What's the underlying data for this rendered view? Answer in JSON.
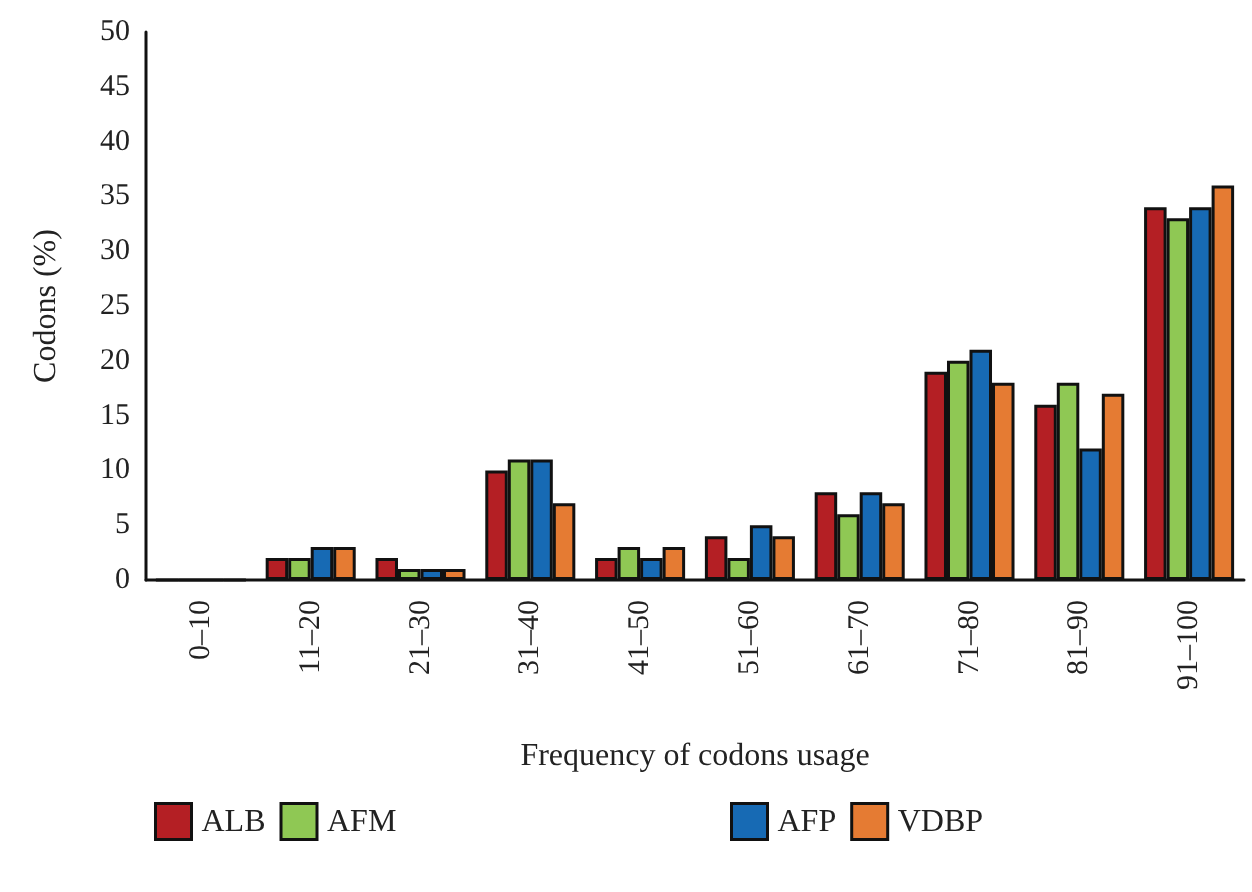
{
  "chart_data": {
    "type": "bar",
    "xlabel": "Frequency of codons usage",
    "ylabel": "Codons (%)",
    "categories": [
      "0–10",
      "11–20",
      "21–30",
      "31–40",
      "41–50",
      "51–60",
      "61–70",
      "71–80",
      "81–90",
      "91–100"
    ],
    "series": [
      {
        "name": "ALB",
        "color": "#b41f24",
        "values": [
          0,
          2,
          2,
          10,
          2,
          4,
          8,
          19,
          16,
          34
        ]
      },
      {
        "name": "AFM",
        "color": "#8fc854",
        "values": [
          0,
          2,
          1,
          11,
          3,
          2,
          6,
          20,
          18,
          33
        ]
      },
      {
        "name": "AFP",
        "color": "#176ab4",
        "values": [
          0,
          3,
          1,
          11,
          2,
          5,
          8,
          21,
          12,
          34
        ]
      },
      {
        "name": "VDBP",
        "color": "#e57b33",
        "values": [
          0,
          3,
          1,
          7,
          3,
          4,
          7,
          18,
          17,
          36
        ]
      }
    ],
    "ylim": [
      0,
      50
    ],
    "yticks": [
      0,
      5,
      10,
      15,
      20,
      25,
      30,
      35,
      40,
      45,
      50
    ],
    "grid": false,
    "legend": "bottom"
  }
}
